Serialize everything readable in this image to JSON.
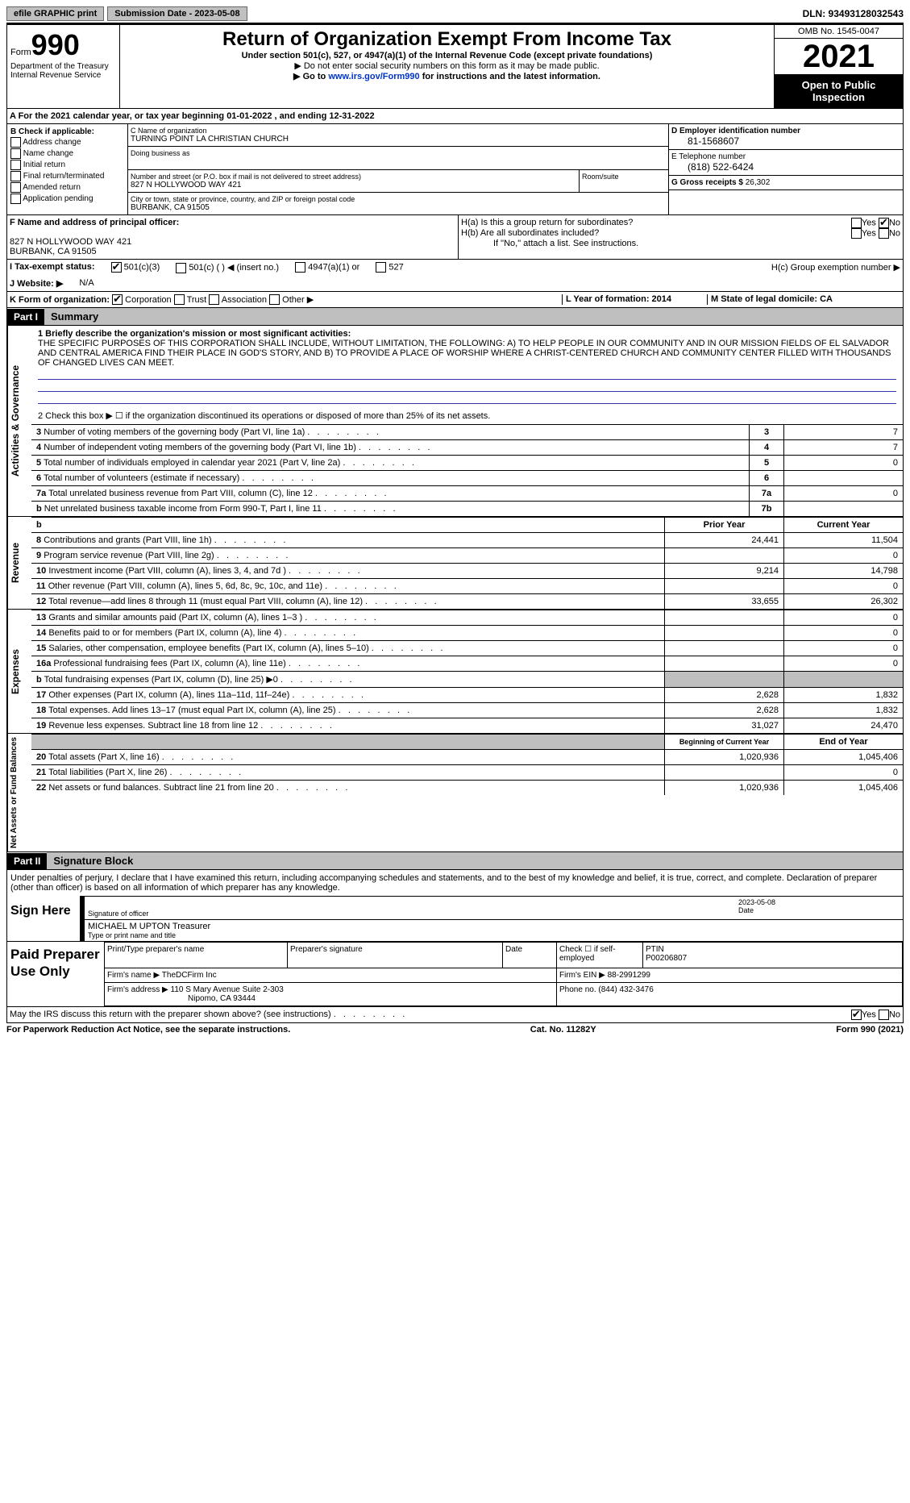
{
  "topbar": {
    "efile": "efile GRAPHIC print",
    "submission": "Submission Date - 2023-05-08",
    "dln": "DLN: 93493128032543"
  },
  "header": {
    "form_label": "Form",
    "form_number": "990",
    "dept": "Department of the Treasury Internal Revenue Service",
    "title": "Return of Organization Exempt From Income Tax",
    "subtitle": "Under section 501(c), 527, or 4947(a)(1) of the Internal Revenue Code (except private foundations)",
    "note1": "▶ Do not enter social security numbers on this form as it may be made public.",
    "note2_pre": "▶ Go to ",
    "note2_link": "www.irs.gov/Form990",
    "note2_post": " for instructions and the latest information.",
    "omb": "OMB No. 1545-0047",
    "year": "2021",
    "inspect": "Open to Public Inspection"
  },
  "row_a": "A For the 2021 calendar year, or tax year beginning 01-01-2022   , and ending 12-31-2022",
  "section_b": {
    "title": "B Check if applicable:",
    "items": [
      "Address change",
      "Name change",
      "Initial return",
      "Final return/terminated",
      "Amended return",
      "Application pending"
    ]
  },
  "section_c": {
    "name_label": "C Name of organization",
    "name": "TURNING POINT LA CHRISTIAN CHURCH",
    "dba_label": "Doing business as",
    "street_label": "Number and street (or P.O. box if mail is not delivered to street address)",
    "street": "827 N HOLLYWOOD WAY 421",
    "room_label": "Room/suite",
    "city_label": "City or town, state or province, country, and ZIP or foreign postal code",
    "city": "BURBANK, CA  91505"
  },
  "section_d": {
    "ein_label": "D Employer identification number",
    "ein": "81-1568607",
    "phone_label": "E Telephone number",
    "phone": "(818) 522-6424",
    "gross_label": "G Gross receipts $",
    "gross": "26,302"
  },
  "section_f": {
    "label": "F  Name and address of principal officer:",
    "addr1": "827 N HOLLYWOOD WAY 421",
    "addr2": "BURBANK, CA  91505"
  },
  "section_h": {
    "ha": "H(a)  Is this a group return for subordinates?",
    "hb": "H(b)  Are all subordinates included?",
    "hb_note": "If \"No,\" attach a list. See instructions.",
    "hc": "H(c)  Group exemption number ▶",
    "yes": "Yes",
    "no": "No"
  },
  "row_i": {
    "label": "I   Tax-exempt status:",
    "opt1": "501(c)(3)",
    "opt2": "501(c) (  ) ◀ (insert no.)",
    "opt3": "4947(a)(1) or",
    "opt4": "527"
  },
  "row_j": {
    "label": "J   Website: ▶",
    "value": "N/A"
  },
  "row_k": {
    "label": "K Form of organization:",
    "opts": [
      "Corporation",
      "Trust",
      "Association",
      "Other ▶"
    ],
    "l": "L Year of formation: 2014",
    "m": "M State of legal domicile: CA"
  },
  "part1": {
    "header": "Part I",
    "title": "Summary"
  },
  "summary": {
    "line1_label": "1  Briefly describe the organization's mission or most significant activities:",
    "line1_text": "THE SPECIFIC PURPOSES OF THIS CORPORATION SHALL INCLUDE, WITHOUT LIMITATION, THE FOLLOWING: A) TO HELP PEOPLE IN OUR COMMUNITY AND IN OUR MISSION FIELDS OF EL SALVADOR AND CENTRAL AMERICA FIND THEIR PLACE IN GOD'S STORY, AND B) TO PROVIDE A PLACE OF WORSHIP WHERE A CHRIST-CENTERED CHURCH AND COMMUNITY CENTER FILLED WITH THOUSANDS OF CHANGED LIVES CAN MEET.",
    "line2": "2   Check this box ▶ ☐  if the organization discontinued its operations or disposed of more than 25% of its net assets.",
    "rows_gov": [
      {
        "n": "3",
        "t": "Number of voting members of the governing body (Part VI, line 1a)",
        "box": "3",
        "v": "7"
      },
      {
        "n": "4",
        "t": "Number of independent voting members of the governing body (Part VI, line 1b)",
        "box": "4",
        "v": "7"
      },
      {
        "n": "5",
        "t": "Total number of individuals employed in calendar year 2021 (Part V, line 2a)",
        "box": "5",
        "v": "0"
      },
      {
        "n": "6",
        "t": "Total number of volunteers (estimate if necessary)",
        "box": "6",
        "v": ""
      },
      {
        "n": "7a",
        "t": "Total unrelated business revenue from Part VIII, column (C), line 12",
        "box": "7a",
        "v": "0"
      },
      {
        "n": "b",
        "t": "Net unrelated business taxable income from Form 990-T, Part I, line 11",
        "box": "7b",
        "v": ""
      }
    ],
    "col_headers": {
      "prior": "Prior Year",
      "current": "Current Year",
      "boy": "Beginning of Current Year",
      "eoy": "End of Year"
    },
    "rows_rev": [
      {
        "n": "8",
        "t": "Contributions and grants (Part VIII, line 1h)",
        "p": "24,441",
        "c": "11,504"
      },
      {
        "n": "9",
        "t": "Program service revenue (Part VIII, line 2g)",
        "p": "",
        "c": "0"
      },
      {
        "n": "10",
        "t": "Investment income (Part VIII, column (A), lines 3, 4, and 7d )",
        "p": "9,214",
        "c": "14,798"
      },
      {
        "n": "11",
        "t": "Other revenue (Part VIII, column (A), lines 5, 6d, 8c, 9c, 10c, and 11e)",
        "p": "",
        "c": "0"
      },
      {
        "n": "12",
        "t": "Total revenue—add lines 8 through 11 (must equal Part VIII, column (A), line 12)",
        "p": "33,655",
        "c": "26,302"
      }
    ],
    "rows_exp": [
      {
        "n": "13",
        "t": "Grants and similar amounts paid (Part IX, column (A), lines 1–3 )",
        "p": "",
        "c": "0"
      },
      {
        "n": "14",
        "t": "Benefits paid to or for members (Part IX, column (A), line 4)",
        "p": "",
        "c": "0"
      },
      {
        "n": "15",
        "t": "Salaries, other compensation, employee benefits (Part IX, column (A), lines 5–10)",
        "p": "",
        "c": "0"
      },
      {
        "n": "16a",
        "t": "Professional fundraising fees (Part IX, column (A), line 11e)",
        "p": "",
        "c": "0"
      },
      {
        "n": "b",
        "t": "Total fundraising expenses (Part IX, column (D), line 25) ▶0",
        "p": "grey",
        "c": "grey"
      },
      {
        "n": "17",
        "t": "Other expenses (Part IX, column (A), lines 11a–11d, 11f–24e)",
        "p": "2,628",
        "c": "1,832"
      },
      {
        "n": "18",
        "t": "Total expenses. Add lines 13–17 (must equal Part IX, column (A), line 25)",
        "p": "2,628",
        "c": "1,832"
      },
      {
        "n": "19",
        "t": "Revenue less expenses. Subtract line 18 from line 12",
        "p": "31,027",
        "c": "24,470"
      }
    ],
    "rows_net": [
      {
        "n": "20",
        "t": "Total assets (Part X, line 16)",
        "p": "1,020,936",
        "c": "1,045,406"
      },
      {
        "n": "21",
        "t": "Total liabilities (Part X, line 26)",
        "p": "",
        "c": "0"
      },
      {
        "n": "22",
        "t": "Net assets or fund balances. Subtract line 21 from line 20",
        "p": "1,020,936",
        "c": "1,045,406"
      }
    ],
    "vlabels": {
      "gov": "Activities & Governance",
      "rev": "Revenue",
      "exp": "Expenses",
      "net": "Net Assets or Fund Balances"
    }
  },
  "part2": {
    "header": "Part II",
    "title": "Signature Block"
  },
  "sig": {
    "declaration": "Under penalties of perjury, I declare that I have examined this return, including accompanying schedules and statements, and to the best of my knowledge and belief, it is true, correct, and complete. Declaration of preparer (other than officer) is based on all information of which preparer has any knowledge.",
    "sign_here": "Sign Here",
    "sig_officer": "Signature of officer",
    "date": "Date",
    "date_val": "2023-05-08",
    "name": "MICHAEL M UPTON  Treasurer",
    "name_label": "Type or print name and title"
  },
  "prep": {
    "label": "Paid Preparer Use Only",
    "h1": "Print/Type preparer's name",
    "h2": "Preparer's signature",
    "h3": "Date",
    "h4_pre": "Check ☐ if self-employed",
    "h5": "PTIN",
    "ptin": "P00206807",
    "firm_name_label": "Firm's name   ▶",
    "firm_name": "TheDCFirm Inc",
    "firm_ein_label": "Firm's EIN ▶",
    "firm_ein": "88-2991299",
    "firm_addr_label": "Firm's address ▶",
    "firm_addr1": "110 S Mary Avenue Suite 2-303",
    "firm_addr2": "Nipomo, CA  93444",
    "phone_label": "Phone no.",
    "phone": "(844) 432-3476"
  },
  "discuss": {
    "text": "May the IRS discuss this return with the preparer shown above? (see instructions)",
    "yes": "Yes",
    "no": "No"
  },
  "footer": {
    "left": "For Paperwork Reduction Act Notice, see the separate instructions.",
    "mid": "Cat. No. 11282Y",
    "right": "Form 990 (2021)"
  }
}
